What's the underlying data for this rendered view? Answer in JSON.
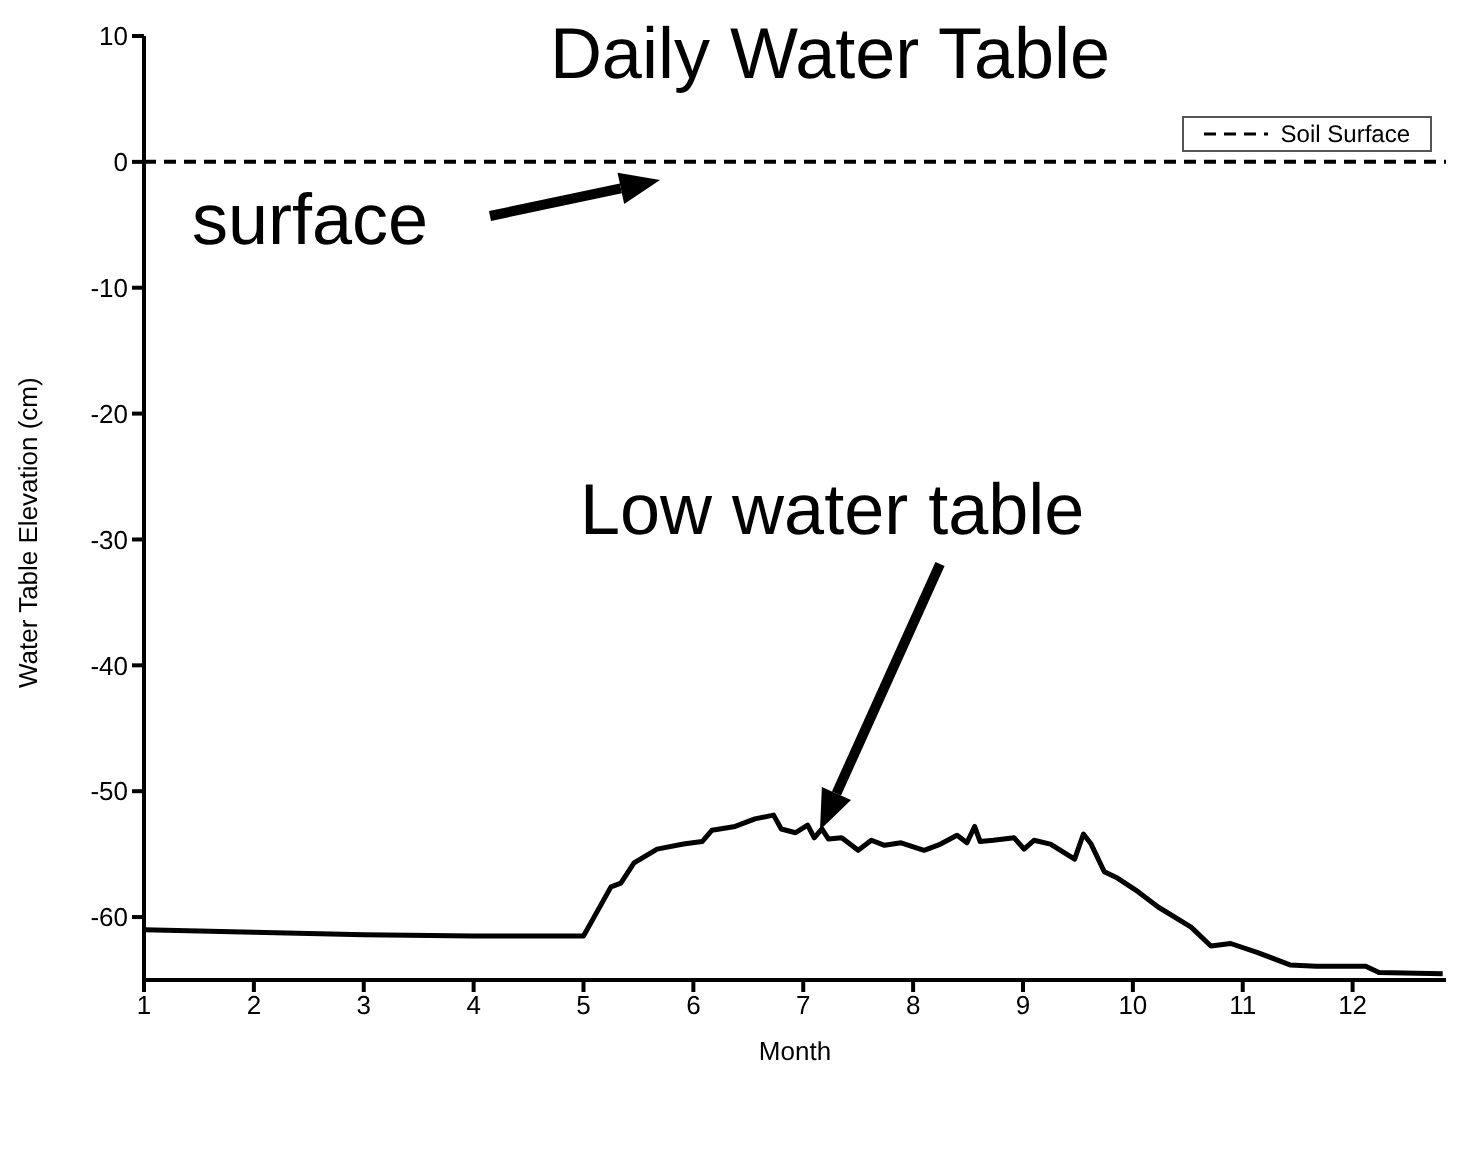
{
  "chart_data": {
    "type": "line",
    "title": "Daily Water Table",
    "xlabel": "Month",
    "ylabel": "Water Table Elevation (cm)",
    "x": [
      1,
      2,
      3,
      4,
      5,
      5.25,
      5.34,
      5.46,
      5.67,
      5.91,
      6.08,
      6.17,
      6.38,
      6.56,
      6.73,
      6.8,
      6.93,
      7.04,
      7.1,
      7.17,
      7.23,
      7.35,
      7.5,
      7.62,
      7.74,
      7.89,
      8.1,
      8.25,
      8.4,
      8.49,
      8.56,
      8.61,
      8.73,
      8.92,
      9.01,
      9.1,
      9.25,
      9.47,
      9.55,
      9.62,
      9.74,
      9.86,
      10.05,
      10.23,
      10.53,
      10.71,
      10.89,
      11.13,
      11.43,
      11.67,
      12.12,
      12.24,
      12.82
    ],
    "series": [
      {
        "color": "#000000",
        "values": [
          -61.0,
          -61.2,
          -61.4,
          -61.5,
          -61.5,
          -57.6,
          -57.3,
          -55.7,
          -54.6,
          -54.2,
          -54.0,
          -53.1,
          -52.8,
          -52.2,
          -51.9,
          -53.0,
          -53.3,
          -52.7,
          -53.7,
          -53.0,
          -53.8,
          -53.7,
          -54.7,
          -53.9,
          -54.3,
          -54.1,
          -54.7,
          -54.2,
          -53.5,
          -54.1,
          -52.8,
          -54.0,
          -53.9,
          -53.7,
          -54.6,
          -53.9,
          -54.2,
          -55.4,
          -53.4,
          -54.2,
          -56.4,
          -56.9,
          -58.0,
          -59.2,
          -60.8,
          -62.3,
          -62.1,
          -62.8,
          -63.8,
          -63.9,
          -63.9,
          -64.4,
          -64.5
        ]
      }
    ],
    "xlim": [
      1,
      12.85
    ],
    "xticks": [
      1,
      2,
      3,
      4,
      5,
      6,
      7,
      8,
      9,
      10,
      11,
      12
    ],
    "ylim": [
      -65,
      10
    ],
    "yticks": [
      10,
      0,
      -10,
      -20,
      -30,
      -40,
      -50,
      -60
    ],
    "ref_lines": [
      {
        "axis": "y",
        "value": 0,
        "label": "Soil Surface",
        "color": "#000000",
        "line_style": "dashed"
      }
    ],
    "annotations": [
      "surface",
      "Low water table"
    ],
    "legend": "top right",
    "grid": false,
    "marker": "none",
    "line_style": "solid"
  }
}
